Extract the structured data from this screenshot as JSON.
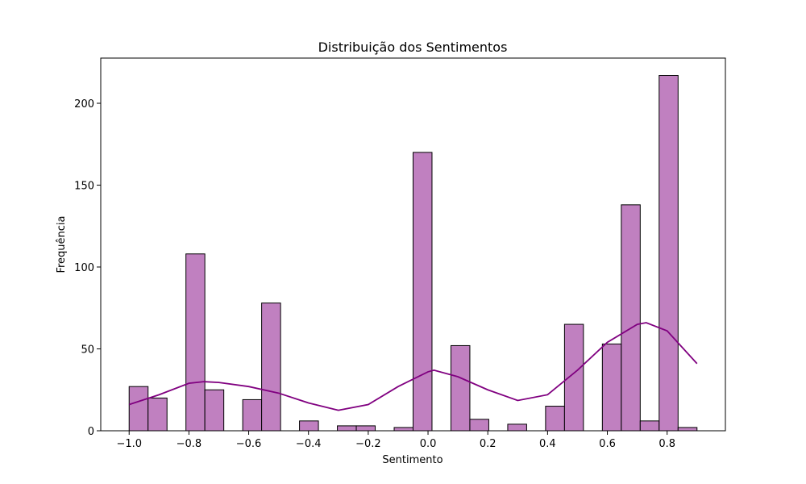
{
  "chart_data": {
    "type": "histogram",
    "title": "Distribuição dos Sentimentos",
    "xlabel": "Sentimento",
    "ylabel": "Frequência",
    "bins": [
      -1.0,
      -0.9367,
      -0.8733,
      -0.81,
      -0.7467,
      -0.6833,
      -0.62,
      -0.5567,
      -0.4933,
      -0.43,
      -0.3667,
      -0.3033,
      -0.24,
      -0.1767,
      -0.1133,
      -0.05,
      0.0133,
      0.0767,
      0.14,
      0.2033,
      0.2667,
      0.33,
      0.3933,
      0.4567,
      0.52,
      0.5833,
      0.6467,
      0.71,
      0.7733,
      0.8367,
      0.9
    ],
    "counts": [
      27,
      20,
      0,
      108,
      25,
      0,
      19,
      78,
      0,
      6,
      0,
      3,
      3,
      0,
      2,
      170,
      0,
      52,
      7,
      0,
      4,
      0,
      15,
      65,
      0,
      53,
      138,
      6,
      217,
      2
    ],
    "color": "#c080c0",
    "edgecolor": "#000000",
    "kde": {
      "x": [
        -1.0,
        -0.9,
        -0.8,
        -0.75,
        -0.7,
        -0.6,
        -0.5,
        -0.4,
        -0.3,
        -0.2,
        -0.1,
        0.0,
        0.02,
        0.1,
        0.2,
        0.3,
        0.4,
        0.5,
        0.6,
        0.7,
        0.73,
        0.8,
        0.9
      ],
      "values": [
        16,
        22,
        29,
        30,
        29.5,
        27,
        23,
        17,
        12.5,
        16,
        27,
        36,
        37,
        33,
        25,
        18.5,
        22,
        37,
        54,
        65,
        66,
        61,
        41
      ],
      "color": "#800080"
    },
    "xlim": [
      -1.095,
      0.995
    ],
    "ylim": [
      0,
      227.6
    ],
    "xticks": [
      {
        "value": -1.0,
        "label": "−1.0"
      },
      {
        "value": -0.8,
        "label": "−0.8"
      },
      {
        "value": -0.6,
        "label": "−0.6"
      },
      {
        "value": -0.4,
        "label": "−0.4"
      },
      {
        "value": -0.2,
        "label": "−0.2"
      },
      {
        "value": 0.0,
        "label": "0.0"
      },
      0.2,
      0.4,
      0.6,
      0.8
    ],
    "yticks": [
      0,
      50,
      100,
      150,
      200
    ]
  }
}
